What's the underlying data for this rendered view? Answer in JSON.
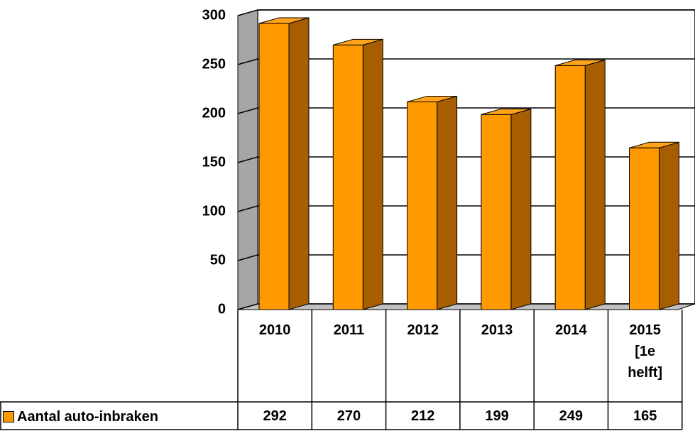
{
  "chart_data": {
    "type": "bar3d",
    "categories": [
      "2010",
      "2011",
      "2012",
      "2013",
      "2014",
      "2015 [1e helft]"
    ],
    "series": [
      {
        "name": "Aantal auto-inbraken",
        "color": "#ff9900",
        "values": [
          292,
          270,
          212,
          199,
          249,
          165
        ]
      }
    ],
    "ylim": [
      0,
      300
    ],
    "yticks": [
      0,
      50,
      100,
      150,
      200,
      250,
      300
    ],
    "grid": true,
    "data_table": true
  }
}
